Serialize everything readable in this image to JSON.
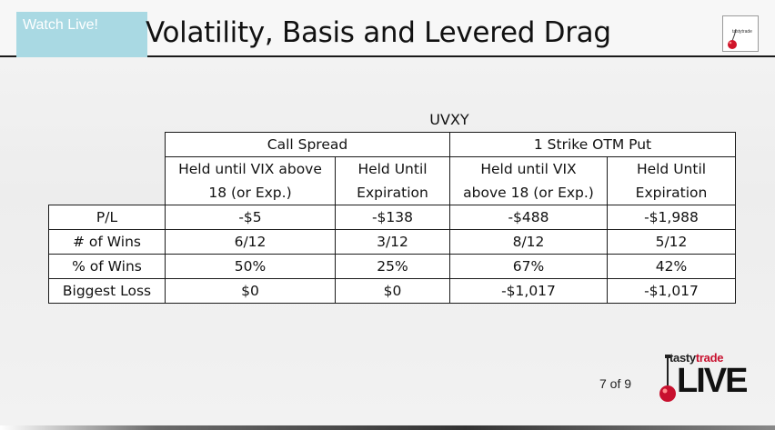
{
  "overlay": {
    "watch_live": "Watch Live!"
  },
  "slide": {
    "title": "Volatility, Basis and Levered Drag",
    "corner_logo_text": "tastytrade",
    "table_caption": "UVXY",
    "page_number": "7 of 9",
    "brand_tasty": "tasty",
    "brand_trade": "trade",
    "brand_live": "LIVE"
  },
  "table": {
    "group_headers": [
      "Call Spread",
      "1 Strike OTM Put"
    ],
    "sub_headers": [
      [
        "Held until VIX above",
        "18 (or Exp.)"
      ],
      [
        "Held Until",
        "Expiration"
      ],
      [
        "Held until VIX",
        "above 18 (or Exp.)"
      ],
      [
        "Held Until",
        "Expiration"
      ]
    ],
    "rows": [
      {
        "label": "P/L",
        "values": [
          "-$5",
          "-$138",
          "-$488",
          "-$1,988"
        ]
      },
      {
        "label": "# of Wins",
        "values": [
          "6/12",
          "3/12",
          "8/12",
          "5/12"
        ]
      },
      {
        "label": "% of Wins",
        "values": [
          "50%",
          "25%",
          "67%",
          "42%"
        ]
      },
      {
        "label": "Biggest Loss",
        "values": [
          "$0",
          "$0",
          "-$1,017",
          "-$1,017"
        ]
      }
    ]
  },
  "colors": {
    "watch_live_bg": "#a9d9e3",
    "title_rule": "#1a1a1a",
    "brand_red": "#c8102e"
  }
}
